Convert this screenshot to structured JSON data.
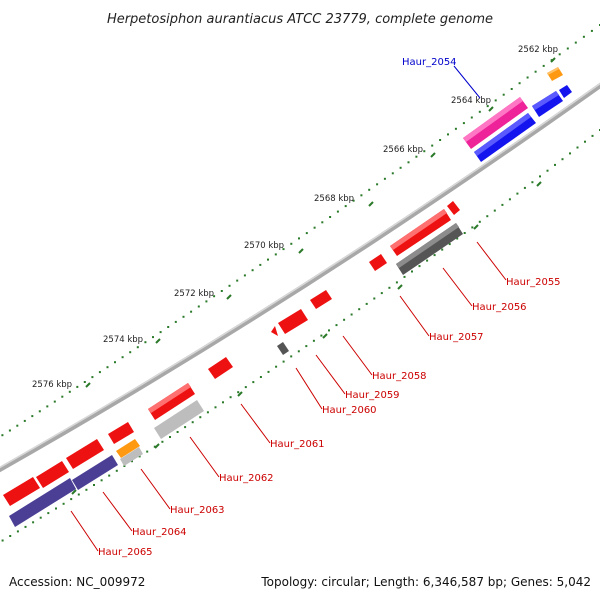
{
  "header": {
    "title": "Herpetosiphon aurantiacus ATCC 23779, complete genome"
  },
  "footer": {
    "accession": "Accession: NC_009972",
    "summary": "Topology: circular; Length: 6,346,587 bp; Genes: 5,042"
  },
  "scale_ticks": [
    "2562 kbp",
    "2564 kbp",
    "2566 kbp",
    "2568 kbp",
    "2570 kbp",
    "2572 kbp",
    "2574 kbp",
    "2576 kbp"
  ],
  "gene_labels": [
    {
      "text": "Haur_2054",
      "color": "#0000cc"
    },
    {
      "text": "Haur_2055",
      "color": "#cc0000"
    },
    {
      "text": "Haur_2056",
      "color": "#cc0000"
    },
    {
      "text": "Haur_2057",
      "color": "#cc0000"
    },
    {
      "text": "Haur_2058",
      "color": "#cc0000"
    },
    {
      "text": "Haur_2059",
      "color": "#cc0000"
    },
    {
      "text": "Haur_2060",
      "color": "#cc0000"
    },
    {
      "text": "Haur_2061",
      "color": "#cc0000"
    },
    {
      "text": "Haur_2062",
      "color": "#cc0000"
    },
    {
      "text": "Haur_2063",
      "color": "#cc0000"
    },
    {
      "text": "Haur_2064",
      "color": "#cc0000"
    },
    {
      "text": "Haur_2065",
      "color": "#cc0000"
    }
  ],
  "colors": {
    "backbone": "#909090",
    "tick_major": "#2a7a2a",
    "tick_minor": "#2a7a2a",
    "red_gene": "#ee1111",
    "blue_gene": "#1414ee",
    "pink_gene": "#ee2299",
    "orange_gene": "#ff9911",
    "purple_gene": "#4a3f95",
    "dark_gray_gene": "#555555",
    "light_gray_gene": "#bdbdbd",
    "leader_blue": "#0000cc",
    "leader_red": "#cc0000"
  }
}
